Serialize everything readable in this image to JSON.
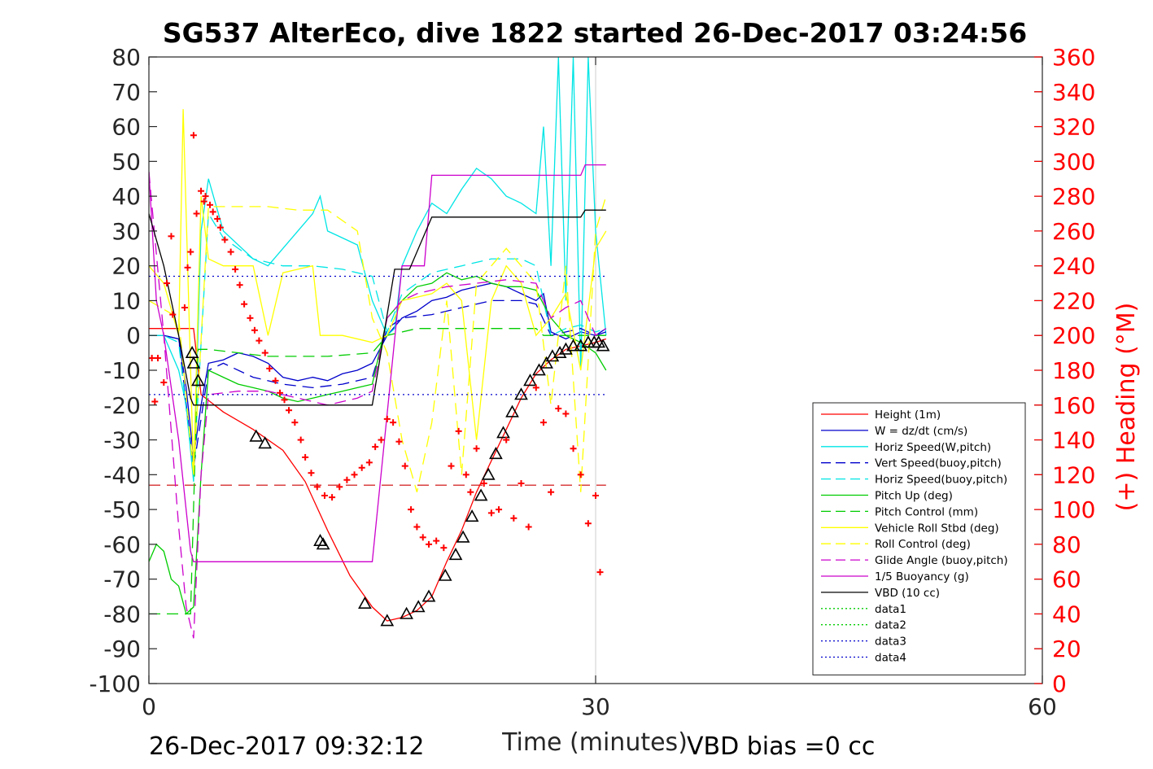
{
  "chart_data": {
    "type": "line",
    "title": "SG537 AlterEco, dive 1822 started 26-Dec-2017 03:24:56",
    "xlabel": "Time (minutes)",
    "ylabel_right": "(+) Heading (°M)",
    "xlim": [
      0,
      60
    ],
    "ylim": [
      -100,
      80
    ],
    "ylim_right": [
      0,
      360
    ],
    "x_ticks": [
      0,
      30,
      60
    ],
    "y_ticks": [
      80,
      70,
      60,
      50,
      40,
      30,
      20,
      10,
      0,
      -10,
      -20,
      -30,
      -40,
      -50,
      -60,
      -70,
      -80,
      -90,
      -100
    ],
    "y_ticks_right": [
      360,
      340,
      320,
      300,
      280,
      260,
      240,
      220,
      200,
      180,
      160,
      140,
      120,
      100,
      80,
      60,
      40,
      20,
      0
    ],
    "grid": false,
    "vline_x": 30,
    "legend_position": "lower-right",
    "footer_left": "26-Dec-2017 09:32:12",
    "footer_right": "VBD bias =0 cc",
    "colors": {
      "axes": "#262626",
      "heading": "#ff0000",
      "frame": "#000000"
    },
    "series": [
      {
        "name": "Height (1m)",
        "color": "#ff0000",
        "style": "solid",
        "x": [
          0,
          3.0,
          3.5,
          5,
          7,
          9,
          10.5,
          12,
          13.5,
          15,
          16,
          17,
          18,
          19,
          20,
          21,
          22,
          23,
          24,
          25,
          26,
          27,
          28,
          29,
          30,
          30.7
        ],
        "y": [
          2,
          2,
          -17,
          -22,
          -27,
          -33,
          -42,
          -56,
          -69,
          -78,
          -82,
          -81,
          -79,
          -75,
          -65,
          -56,
          -45,
          -36,
          -27,
          -18,
          -11,
          -7,
          -4,
          -3,
          -2,
          -1
        ]
      },
      {
        "name": "W = dz/dt (cm/s)",
        "color": "#0000cc",
        "style": "solid",
        "x": [
          0,
          1,
          2,
          2.5,
          3,
          3.5,
          4,
          5,
          6,
          7,
          8,
          9,
          10,
          11,
          12,
          13,
          14,
          15,
          16,
          17,
          18,
          19,
          20,
          21,
          22,
          23,
          24,
          25,
          26,
          26.5,
          27,
          28,
          29,
          30,
          30.7
        ],
        "y": [
          0,
          0,
          -1,
          -15,
          -35,
          -20,
          -8,
          -7,
          -5,
          -6,
          -8,
          -12,
          -13,
          -12,
          -13,
          -11,
          -10,
          -8,
          0,
          5,
          7,
          10,
          11,
          13,
          14,
          15,
          14,
          12,
          10,
          12,
          1,
          -1,
          1,
          0,
          2
        ]
      },
      {
        "name": "Horiz Speed(W,pitch)",
        "color": "#00e5e5",
        "style": "solid",
        "x": [
          0,
          1,
          2,
          2.5,
          3,
          3.5,
          4,
          5,
          6,
          7,
          8,
          9,
          10,
          11,
          11.5,
          12,
          13,
          14,
          15,
          16,
          16.5,
          17,
          18,
          19,
          20,
          21,
          22,
          23,
          24,
          25,
          26,
          26.5,
          27,
          27.5,
          28,
          28.5,
          29,
          29.5,
          30,
          30.7
        ],
        "y": [
          0,
          0,
          -10,
          -20,
          -42,
          30,
          45,
          30,
          26,
          22,
          20,
          25,
          30,
          35,
          40,
          30,
          28,
          26,
          10,
          0,
          2,
          20,
          30,
          38,
          35,
          42,
          48,
          45,
          40,
          38,
          35,
          60,
          20,
          80,
          10,
          80,
          -10,
          80,
          30,
          0
        ]
      },
      {
        "name": "Vert Speed(buoy,pitch)",
        "color": "#0000cc",
        "style": "dashed",
        "x": [
          0,
          1,
          2,
          3,
          4,
          5,
          7,
          9,
          11,
          13,
          15,
          16,
          17,
          19,
          21,
          23,
          25,
          26,
          27,
          28,
          29,
          30,
          30.7
        ],
        "y": [
          0,
          0,
          -1,
          -38,
          -10,
          -8,
          -12,
          -14,
          -15,
          -14,
          -12,
          2,
          5,
          6,
          8,
          10,
          10,
          9,
          0,
          1,
          2,
          0,
          1
        ]
      },
      {
        "name": "Horiz Speed(buoy,pitch)",
        "color": "#00e5e5",
        "style": "dashed",
        "x": [
          0,
          1,
          2,
          3,
          4,
          5,
          7,
          9,
          11,
          13,
          15,
          16,
          17,
          19,
          21,
          23,
          25,
          26,
          27,
          28,
          29,
          30,
          30.7
        ],
        "y": [
          0,
          0,
          -2,
          -40,
          35,
          28,
          22,
          20,
          20,
          19,
          17,
          1,
          12,
          18,
          20,
          22,
          22,
          20,
          0,
          2,
          3,
          1,
          2
        ]
      },
      {
        "name": "Pitch Up (deg)",
        "color": "#00cc00",
        "style": "solid",
        "x": [
          0,
          0.5,
          1,
          1.5,
          2,
          2.5,
          3,
          3.5,
          4,
          5,
          6,
          7,
          8,
          9,
          10,
          11,
          12,
          13,
          14,
          15,
          16,
          17,
          18,
          19,
          20,
          21,
          22,
          23,
          24,
          25,
          26,
          27,
          28,
          29,
          30,
          30.7
        ],
        "y": [
          -65,
          -60,
          -62,
          -70,
          -72,
          -80,
          -78,
          -40,
          -10,
          -12,
          -14,
          -15,
          -16,
          -18,
          -19,
          -18,
          -17,
          -16,
          -15,
          -14,
          5,
          10,
          14,
          15,
          18,
          16,
          17,
          15,
          14,
          14,
          13,
          5,
          0,
          -2,
          -5,
          -10
        ]
      },
      {
        "name": "Pitch Control (mm)",
        "color": "#00cc00",
        "style": "dashed",
        "x": [
          0,
          2,
          2.8,
          3.3,
          4,
          8,
          12,
          15,
          16,
          18,
          20,
          22,
          24,
          26,
          26.5,
          27,
          29,
          30,
          30.7
        ],
        "y": [
          -80,
          -80,
          -80,
          -4,
          -4,
          -6,
          -6,
          -5,
          0,
          2,
          2,
          2,
          2,
          2,
          0,
          0,
          0,
          0,
          0
        ]
      },
      {
        "name": "Vehicle Roll Stbd (deg)",
        "color": "#ffff00",
        "style": "solid",
        "x": [
          0,
          1,
          2,
          2.3,
          2.6,
          3,
          3.5,
          4,
          5,
          7,
          8,
          9,
          10,
          11,
          11.5,
          12,
          13,
          15,
          16,
          17,
          19,
          20,
          21,
          22,
          23,
          24,
          25,
          26,
          27,
          28,
          29,
          30,
          30.7
        ],
        "y": [
          20,
          15,
          0,
          65,
          20,
          -40,
          40,
          22,
          20,
          20,
          0,
          18,
          19,
          20,
          0,
          0,
          0,
          -2,
          0,
          10,
          12,
          15,
          10,
          -30,
          10,
          20,
          15,
          0,
          5,
          12,
          -10,
          25,
          30
        ]
      },
      {
        "name": "Roll Control (deg)",
        "color": "#ffff00",
        "style": "dashed",
        "x": [
          0,
          2,
          3,
          4,
          6,
          8,
          10,
          12,
          14,
          15,
          16,
          17,
          18,
          19,
          20,
          21,
          22,
          24,
          26,
          27,
          28,
          29,
          30,
          30.7
        ],
        "y": [
          10,
          5,
          -40,
          37,
          37,
          37,
          36,
          36,
          30,
          5,
          -5,
          -30,
          -45,
          -25,
          10,
          -40,
          15,
          25,
          15,
          -20,
          20,
          -45,
          30,
          40
        ]
      },
      {
        "name": "Glide Angle (buoy,pitch)",
        "color": "#cc00cc",
        "style": "dashed",
        "x": [
          0,
          1,
          2,
          2.5,
          3,
          3.5,
          4,
          6,
          8,
          10,
          12,
          14,
          15,
          16,
          17,
          18,
          20,
          22,
          24,
          26,
          27,
          28,
          29,
          30,
          30.7
        ],
        "y": [
          47,
          0,
          -55,
          -78,
          -87,
          -40,
          -17,
          -16,
          -16,
          -18,
          -20,
          -18,
          -16,
          5,
          10,
          12,
          14,
          15,
          16,
          15,
          5,
          8,
          10,
          0,
          2
        ]
      },
      {
        "name": "1/5 Buoyancy (g)",
        "color": "#cc00cc",
        "style": "solid",
        "x": [
          0,
          0.5,
          1,
          2,
          2.8,
          3,
          4,
          6,
          8,
          10,
          12,
          14,
          15,
          17,
          18.5,
          19,
          20,
          22,
          24,
          26,
          28,
          29,
          29.3,
          30,
          30.7
        ],
        "y": [
          47,
          10,
          0,
          -30,
          -62,
          -65,
          -65,
          -65,
          -65,
          -65,
          -65,
          -65,
          -65,
          20,
          20,
          46,
          46,
          46,
          46,
          46,
          46,
          46,
          49,
          49,
          49
        ]
      },
      {
        "name": "VBD (10 cc)",
        "color": "#000000",
        "style": "solid",
        "x": [
          0,
          1,
          2,
          2.8,
          3,
          4,
          6,
          8,
          10,
          12,
          14,
          15,
          16.5,
          17.5,
          19,
          20,
          22,
          24,
          26,
          28,
          29,
          29.3,
          30,
          30.7
        ],
        "y": [
          35,
          20,
          0,
          -18,
          -20,
          -20,
          -20,
          -20,
          -20,
          -20,
          -20,
          -20,
          19,
          19,
          34,
          34,
          34,
          34,
          34,
          34,
          34,
          36,
          36,
          36
        ]
      },
      {
        "name": "data1",
        "color": "#00cc00",
        "style": "dotted",
        "x": [],
        "y": []
      },
      {
        "name": "data2",
        "color": "#00cc00",
        "style": "dotted",
        "x": [],
        "y": []
      },
      {
        "name": "data3",
        "color": "#0000cc",
        "style": "dotted",
        "x": [
          0,
          30.7
        ],
        "y": [
          17,
          17
        ]
      },
      {
        "name": "data4",
        "color": "#0000cc",
        "style": "dotted",
        "x": [
          0,
          30.7
        ],
        "y": [
          -17,
          -17
        ]
      }
    ],
    "reference_lines": [
      {
        "color": "#cc0000",
        "style": "dashed",
        "y": -43,
        "x": [
          0,
          30.7
        ]
      }
    ],
    "heading_points": {
      "color": "#ff0000",
      "x": [
        0.2,
        0.4,
        0.6,
        1.0,
        1.2,
        1.5,
        1.6,
        2.4,
        2.6,
        2.8,
        3.0,
        3.2,
        3.5,
        3.7,
        3.8,
        4.1,
        4.3,
        4.6,
        4.8,
        5.1,
        5.5,
        5.8,
        6.1,
        6.4,
        6.8,
        7.1,
        7.4,
        7.8,
        8.1,
        8.5,
        8.8,
        9.1,
        9.4,
        9.8,
        10.2,
        10.5,
        10.9,
        11.3,
        11.8,
        12.3,
        12.8,
        13.3,
        13.8,
        14.3,
        14.8,
        15.2,
        15.6,
        16.0,
        16.4,
        16.8,
        17.2,
        17.6,
        18.0,
        18.4,
        18.8,
        19.3,
        19.8,
        20.3,
        20.8,
        21.3,
        21.6,
        22.0,
        22.5,
        23.0,
        23.5,
        24.0,
        24.5,
        25.0,
        25.5,
        26.0,
        26.5,
        27.0,
        27.5,
        28.0,
        28.5,
        29.0,
        29.5,
        30.0,
        30.3
      ],
      "y": [
        187,
        162,
        187,
        173,
        230,
        257,
        212,
        216,
        239,
        248,
        315,
        270,
        283,
        277,
        280,
        275,
        271,
        267,
        262,
        255,
        248,
        238,
        229,
        218,
        210,
        203,
        197,
        190,
        181,
        174,
        167,
        163,
        157,
        150,
        140,
        130,
        121,
        113,
        108,
        107,
        113,
        117,
        120,
        124,
        127,
        136,
        140,
        152,
        150,
        139,
        125,
        100,
        90,
        84,
        80,
        82,
        78,
        125,
        145,
        120,
        110,
        135,
        115,
        98,
        100,
        140,
        95,
        115,
        90,
        170,
        150,
        110,
        158,
        155,
        135,
        120,
        92,
        108,
        64
      ]
    },
    "triangle_markers": {
      "color": "#000000",
      "x": [
        2.9,
        3.0,
        3.3,
        7.2,
        7.8,
        11.5,
        11.7,
        14.5,
        16.0,
        17.3,
        18.1,
        18.8,
        19.9,
        20.6,
        21.1,
        21.7,
        22.3,
        22.8,
        23.3,
        23.8,
        24.4,
        25.0,
        25.6,
        26.2,
        26.7,
        27.1,
        27.6,
        28.0,
        28.5,
        29.0,
        29.5,
        29.9,
        30.2,
        30.5
      ],
      "y": [
        -5,
        -8,
        -13,
        -29,
        -31,
        -59,
        -60,
        -77,
        -82,
        -80,
        -78,
        -75,
        -69,
        -63,
        -58,
        -52,
        -46,
        -40,
        -34,
        -28,
        -22,
        -17,
        -13,
        -10,
        -8,
        -6,
        -5,
        -4,
        -3,
        -3,
        -2,
        -2,
        -2,
        -3
      ]
    }
  }
}
